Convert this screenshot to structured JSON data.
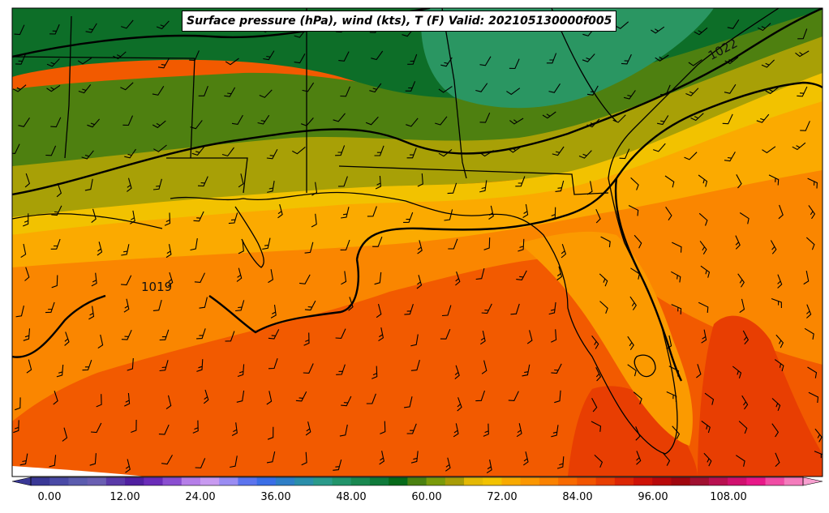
{
  "title": "Surface pressure (hPa), wind (kts), T (F) Valid: 202105130000f005",
  "isobar_labels": [
    "1022",
    "1019"
  ],
  "colorbar": {
    "ticks": [
      "0.00",
      "12.00",
      "24.00",
      "36.00",
      "48.00",
      "60.00",
      "72.00",
      "84.00",
      "96.00",
      "108.00"
    ],
    "colors": [
      "#3a3896",
      "#4a4aa6",
      "#5b5cae",
      "#6a5fb2",
      "#5a3aa8",
      "#5020a0",
      "#6a2cb8",
      "#8a4ed0",
      "#b57ee8",
      "#c89af0",
      "#9a8cf2",
      "#5c74ee",
      "#3a6ee6",
      "#2e7ec6",
      "#2a8eaa",
      "#2a9a8a",
      "#22946a",
      "#1a8850",
      "#0f7a3a",
      "#066a1a",
      "#4a8010",
      "#7a9a0a",
      "#a89c06",
      "#e4b804",
      "#f2c200",
      "#f8aa00",
      "#fb9700",
      "#fa8200",
      "#f86a00",
      "#f25500",
      "#e83e02",
      "#dc2604",
      "#ce1206",
      "#b8080a",
      "#a0060e",
      "#a01030",
      "#b81050",
      "#d0106e",
      "#e81888",
      "#f04ca4",
      "#f47cbc"
    ]
  },
  "isobar_values": [
    1019,
    1022
  ],
  "temperature_units": "F"
}
